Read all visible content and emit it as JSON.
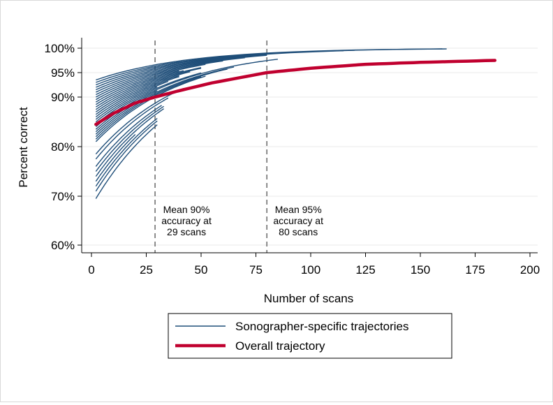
{
  "chart_data": {
    "type": "line",
    "xlabel": "Number of scans",
    "ylabel": "Percent correct",
    "xlim": [
      0,
      200
    ],
    "ylim": [
      60,
      100
    ],
    "x_ticks": [
      0,
      25,
      50,
      75,
      100,
      125,
      150,
      175,
      200
    ],
    "x_tick_labels": [
      "0",
      "25",
      "50",
      "75",
      "100",
      "125",
      "150",
      "175",
      "200"
    ],
    "y_ticks": [
      60,
      70,
      80,
      90,
      95,
      100
    ],
    "y_tick_labels": [
      "60%",
      "70%",
      "80%",
      "90%",
      "95%",
      "100%"
    ],
    "y_scale": "nonlinear (logit-like spacing)",
    "grid": "horizontal",
    "legend_position": "bottom-center",
    "colors": {
      "sonographer": "#1f4e79",
      "overall": "#c0002f",
      "reference": "#666666"
    },
    "reference_lines": [
      {
        "x": 29,
        "lines": [
          "Mean 90%",
          "accuracy at",
          "29 scans"
        ]
      },
      {
        "x": 80,
        "lines": [
          "Mean 95%",
          "accuracy at",
          "80 scans"
        ]
      }
    ],
    "legend": [
      {
        "label": "Sonographer-specific trajectories",
        "color": "#1f4e79"
      },
      {
        "label": "Overall trajectory",
        "color": "#c0002f"
      }
    ],
    "overall_series": {
      "name": "Overall trajectory",
      "points": [
        [
          2,
          84.5
        ],
        [
          10,
          86.7
        ],
        [
          20,
          88.8
        ],
        [
          29,
          90.0
        ],
        [
          40,
          91.3
        ],
        [
          55,
          92.9
        ],
        [
          80,
          95.0
        ],
        [
          100,
          95.9
        ],
        [
          125,
          96.7
        ],
        [
          150,
          97.1
        ],
        [
          184,
          97.5
        ]
      ]
    },
    "sonographer_series": [
      [
        2,
        93.5,
        160
      ],
      [
        2,
        93.0,
        162
      ],
      [
        2,
        92.5,
        120
      ],
      [
        2,
        92.0,
        115
      ],
      [
        2,
        91.5,
        80
      ],
      [
        2,
        91.0,
        80
      ],
      [
        2,
        90.5,
        80
      ],
      [
        2,
        90.0,
        70
      ],
      [
        2,
        89.5,
        60
      ],
      [
        2,
        89.0,
        52
      ],
      [
        2,
        88.5,
        40
      ],
      [
        2,
        88.0,
        42
      ],
      [
        2,
        87.5,
        50
      ],
      [
        2,
        87.0,
        50
      ],
      [
        2,
        86.5,
        45
      ],
      [
        2,
        86.0,
        40
      ],
      [
        2,
        85.5,
        40
      ],
      [
        2,
        85.0,
        35
      ],
      [
        2,
        84.5,
        30
      ],
      [
        2,
        84.0,
        50
      ],
      [
        2,
        83.5,
        85
      ],
      [
        2,
        83.0,
        30
      ],
      [
        2,
        82.5,
        65
      ],
      [
        2,
        82.0,
        62
      ],
      [
        2,
        81.5,
        50
      ],
      [
        2,
        81.0,
        52
      ],
      [
        2,
        78.5,
        42
      ],
      [
        2,
        77.5,
        35
      ],
      [
        2,
        76.0,
        32
      ],
      [
        2,
        75.0,
        33
      ],
      [
        2,
        74.0,
        33
      ],
      [
        2,
        73.0,
        20
      ],
      [
        2,
        72.0,
        30
      ],
      [
        2,
        71.0,
        30
      ],
      [
        2,
        69.5,
        30
      ]
    ]
  }
}
